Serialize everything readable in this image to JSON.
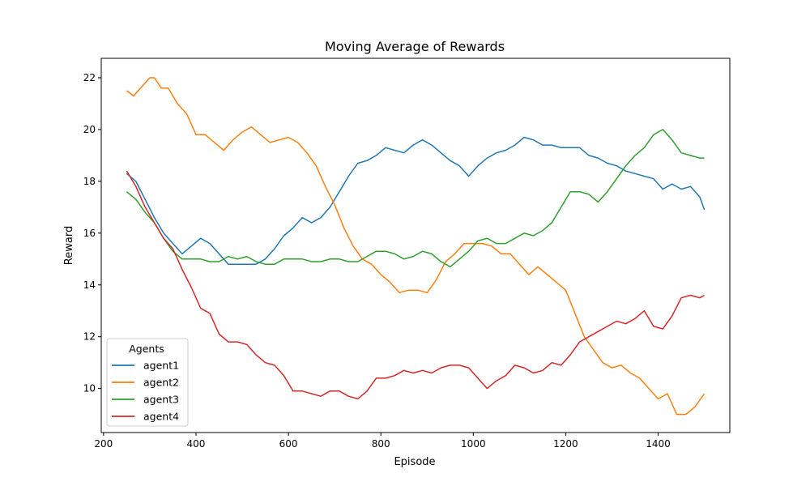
{
  "chart_data": {
    "type": "line",
    "title": "Moving Average of Rewards",
    "xlabel": "Episode",
    "ylabel": "Reward",
    "xlim": [
      195,
      1555
    ],
    "ylim": [
      8.3,
      22.75
    ],
    "xticks": [
      200,
      400,
      600,
      800,
      1000,
      1200,
      1400
    ],
    "yticks": [
      10,
      12,
      14,
      16,
      18,
      20,
      22
    ],
    "grid": false,
    "legend": {
      "title": "Agents",
      "placement": "lower-left"
    },
    "series": [
      {
        "name": "agent1",
        "color": "#1f77b4",
        "points": [
          [
            250,
            18.3
          ],
          [
            270,
            18.0
          ],
          [
            290,
            17.3
          ],
          [
            310,
            16.6
          ],
          [
            330,
            16.0
          ],
          [
            350,
            15.6
          ],
          [
            370,
            15.2
          ],
          [
            390,
            15.5
          ],
          [
            410,
            15.8
          ],
          [
            430,
            15.6
          ],
          [
            450,
            15.2
          ],
          [
            470,
            14.8
          ],
          [
            490,
            14.8
          ],
          [
            510,
            14.8
          ],
          [
            530,
            14.8
          ],
          [
            550,
            15.0
          ],
          [
            570,
            15.4
          ],
          [
            590,
            15.9
          ],
          [
            610,
            16.2
          ],
          [
            630,
            16.6
          ],
          [
            650,
            16.4
          ],
          [
            670,
            16.6
          ],
          [
            690,
            17.0
          ],
          [
            710,
            17.6
          ],
          [
            730,
            18.2
          ],
          [
            750,
            18.7
          ],
          [
            770,
            18.8
          ],
          [
            790,
            19.0
          ],
          [
            810,
            19.3
          ],
          [
            830,
            19.2
          ],
          [
            850,
            19.1
          ],
          [
            870,
            19.4
          ],
          [
            890,
            19.6
          ],
          [
            910,
            19.4
          ],
          [
            930,
            19.1
          ],
          [
            950,
            18.8
          ],
          [
            970,
            18.6
          ],
          [
            990,
            18.2
          ],
          [
            1010,
            18.6
          ],
          [
            1030,
            18.9
          ],
          [
            1050,
            19.1
          ],
          [
            1070,
            19.2
          ],
          [
            1090,
            19.4
          ],
          [
            1110,
            19.7
          ],
          [
            1130,
            19.6
          ],
          [
            1150,
            19.4
          ],
          [
            1170,
            19.4
          ],
          [
            1190,
            19.3
          ],
          [
            1210,
            19.3
          ],
          [
            1230,
            19.3
          ],
          [
            1250,
            19.0
          ],
          [
            1270,
            18.9
          ],
          [
            1290,
            18.7
          ],
          [
            1310,
            18.6
          ],
          [
            1330,
            18.4
          ],
          [
            1350,
            18.3
          ],
          [
            1370,
            18.2
          ],
          [
            1390,
            18.1
          ],
          [
            1410,
            17.7
          ],
          [
            1430,
            17.9
          ],
          [
            1450,
            17.7
          ],
          [
            1470,
            17.8
          ],
          [
            1490,
            17.4
          ],
          [
            1500,
            16.9
          ]
        ]
      },
      {
        "name": "agent2",
        "color": "#ff7f0e",
        "points": [
          [
            250,
            21.5
          ],
          [
            265,
            21.3
          ],
          [
            280,
            21.6
          ],
          [
            300,
            22.0
          ],
          [
            310,
            22.0
          ],
          [
            325,
            21.6
          ],
          [
            340,
            21.6
          ],
          [
            360,
            21.0
          ],
          [
            380,
            20.6
          ],
          [
            400,
            19.8
          ],
          [
            420,
            19.8
          ],
          [
            440,
            19.5
          ],
          [
            460,
            19.2
          ],
          [
            480,
            19.6
          ],
          [
            500,
            19.9
          ],
          [
            520,
            20.1
          ],
          [
            540,
            19.8
          ],
          [
            560,
            19.5
          ],
          [
            580,
            19.6
          ],
          [
            600,
            19.7
          ],
          [
            620,
            19.5
          ],
          [
            640,
            19.1
          ],
          [
            660,
            18.6
          ],
          [
            680,
            17.8
          ],
          [
            700,
            17.1
          ],
          [
            720,
            16.2
          ],
          [
            740,
            15.5
          ],
          [
            760,
            15.0
          ],
          [
            780,
            14.8
          ],
          [
            800,
            14.4
          ],
          [
            820,
            14.1
          ],
          [
            840,
            13.7
          ],
          [
            860,
            13.8
          ],
          [
            880,
            13.8
          ],
          [
            900,
            13.7
          ],
          [
            920,
            14.2
          ],
          [
            940,
            14.9
          ],
          [
            960,
            15.2
          ],
          [
            980,
            15.6
          ],
          [
            1000,
            15.6
          ],
          [
            1020,
            15.6
          ],
          [
            1040,
            15.5
          ],
          [
            1060,
            15.2
          ],
          [
            1080,
            15.2
          ],
          [
            1100,
            14.8
          ],
          [
            1120,
            14.4
          ],
          [
            1140,
            14.7
          ],
          [
            1160,
            14.4
          ],
          [
            1180,
            14.1
          ],
          [
            1200,
            13.8
          ],
          [
            1220,
            12.9
          ],
          [
            1240,
            12.0
          ],
          [
            1260,
            11.5
          ],
          [
            1280,
            11.0
          ],
          [
            1300,
            10.8
          ],
          [
            1320,
            10.9
          ],
          [
            1340,
            10.6
          ],
          [
            1360,
            10.4
          ],
          [
            1380,
            10.0
          ],
          [
            1400,
            9.6
          ],
          [
            1420,
            9.8
          ],
          [
            1440,
            9.0
          ],
          [
            1460,
            9.0
          ],
          [
            1480,
            9.3
          ],
          [
            1500,
            9.8
          ]
        ]
      },
      {
        "name": "agent3",
        "color": "#2ca02c",
        "points": [
          [
            250,
            17.6
          ],
          [
            270,
            17.3
          ],
          [
            290,
            16.8
          ],
          [
            310,
            16.4
          ],
          [
            330,
            15.8
          ],
          [
            350,
            15.3
          ],
          [
            370,
            15.0
          ],
          [
            390,
            15.0
          ],
          [
            410,
            15.0
          ],
          [
            430,
            14.9
          ],
          [
            450,
            14.9
          ],
          [
            470,
            15.1
          ],
          [
            490,
            15.0
          ],
          [
            510,
            15.1
          ],
          [
            530,
            14.9
          ],
          [
            550,
            14.8
          ],
          [
            570,
            14.8
          ],
          [
            590,
            15.0
          ],
          [
            610,
            15.0
          ],
          [
            630,
            15.0
          ],
          [
            650,
            14.9
          ],
          [
            670,
            14.9
          ],
          [
            690,
            15.0
          ],
          [
            710,
            15.0
          ],
          [
            730,
            14.9
          ],
          [
            750,
            14.9
          ],
          [
            770,
            15.1
          ],
          [
            790,
            15.3
          ],
          [
            810,
            15.3
          ],
          [
            830,
            15.2
          ],
          [
            850,
            15.0
          ],
          [
            870,
            15.1
          ],
          [
            890,
            15.3
          ],
          [
            910,
            15.2
          ],
          [
            930,
            14.9
          ],
          [
            950,
            14.7
          ],
          [
            970,
            15.0
          ],
          [
            990,
            15.3
          ],
          [
            1010,
            15.7
          ],
          [
            1030,
            15.8
          ],
          [
            1050,
            15.6
          ],
          [
            1070,
            15.6
          ],
          [
            1090,
            15.8
          ],
          [
            1110,
            16.0
          ],
          [
            1130,
            15.9
          ],
          [
            1150,
            16.1
          ],
          [
            1170,
            16.4
          ],
          [
            1190,
            17.0
          ],
          [
            1210,
            17.6
          ],
          [
            1230,
            17.6
          ],
          [
            1250,
            17.5
          ],
          [
            1270,
            17.2
          ],
          [
            1290,
            17.6
          ],
          [
            1310,
            18.1
          ],
          [
            1330,
            18.6
          ],
          [
            1350,
            19.0
          ],
          [
            1370,
            19.3
          ],
          [
            1390,
            19.8
          ],
          [
            1410,
            20.0
          ],
          [
            1430,
            19.6
          ],
          [
            1450,
            19.1
          ],
          [
            1470,
            19.0
          ],
          [
            1490,
            18.9
          ],
          [
            1500,
            18.9
          ]
        ]
      },
      {
        "name": "agent4",
        "color": "#d62728",
        "points": [
          [
            250,
            18.4
          ],
          [
            270,
            17.8
          ],
          [
            290,
            17.0
          ],
          [
            310,
            16.4
          ],
          [
            330,
            15.8
          ],
          [
            350,
            15.4
          ],
          [
            370,
            14.6
          ],
          [
            390,
            13.9
          ],
          [
            410,
            13.1
          ],
          [
            430,
            12.9
          ],
          [
            450,
            12.1
          ],
          [
            470,
            11.8
          ],
          [
            490,
            11.8
          ],
          [
            510,
            11.7
          ],
          [
            530,
            11.3
          ],
          [
            550,
            11.0
          ],
          [
            570,
            10.9
          ],
          [
            590,
            10.5
          ],
          [
            610,
            9.9
          ],
          [
            630,
            9.9
          ],
          [
            650,
            9.8
          ],
          [
            670,
            9.7
          ],
          [
            690,
            9.9
          ],
          [
            710,
            9.9
          ],
          [
            730,
            9.7
          ],
          [
            750,
            9.6
          ],
          [
            770,
            9.9
          ],
          [
            790,
            10.4
          ],
          [
            810,
            10.4
          ],
          [
            830,
            10.5
          ],
          [
            850,
            10.7
          ],
          [
            870,
            10.6
          ],
          [
            890,
            10.7
          ],
          [
            910,
            10.6
          ],
          [
            930,
            10.8
          ],
          [
            950,
            10.9
          ],
          [
            970,
            10.9
          ],
          [
            990,
            10.8
          ],
          [
            1010,
            10.4
          ],
          [
            1030,
            10.0
          ],
          [
            1050,
            10.3
          ],
          [
            1070,
            10.5
          ],
          [
            1090,
            10.9
          ],
          [
            1110,
            10.8
          ],
          [
            1130,
            10.6
          ],
          [
            1150,
            10.7
          ],
          [
            1170,
            11.0
          ],
          [
            1190,
            10.9
          ],
          [
            1210,
            11.3
          ],
          [
            1230,
            11.8
          ],
          [
            1250,
            12.0
          ],
          [
            1270,
            12.2
          ],
          [
            1290,
            12.4
          ],
          [
            1310,
            12.6
          ],
          [
            1330,
            12.5
          ],
          [
            1350,
            12.7
          ],
          [
            1370,
            13.0
          ],
          [
            1390,
            12.4
          ],
          [
            1410,
            12.3
          ],
          [
            1430,
            12.8
          ],
          [
            1450,
            13.5
          ],
          [
            1470,
            13.6
          ],
          [
            1490,
            13.5
          ],
          [
            1500,
            13.6
          ]
        ]
      }
    ]
  }
}
